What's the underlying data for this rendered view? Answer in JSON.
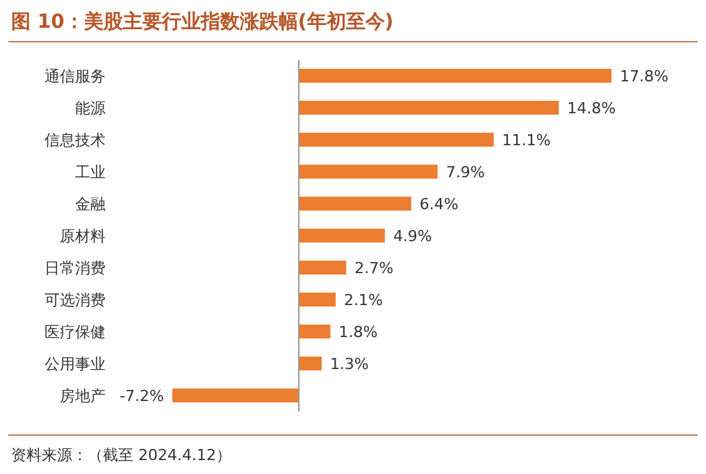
{
  "chart_data": {
    "type": "bar",
    "orientation": "horizontal",
    "title": "图 10：美股主要行业指数涨跌幅(年初至今)",
    "categories": [
      "通信服务",
      "能源",
      "信息技术",
      "工业",
      "金融",
      "原材料",
      "日常消费",
      "可选消费",
      "医疗保健",
      "公用事业",
      "房地产"
    ],
    "values": [
      17.8,
      14.8,
      11.1,
      7.9,
      6.4,
      4.9,
      2.7,
      2.1,
      1.8,
      1.3,
      -7.2
    ],
    "value_labels": [
      "17.8%",
      "14.8%",
      "11.1%",
      "7.9%",
      "6.4%",
      "4.9%",
      "2.7%",
      "2.1%",
      "1.8%",
      "1.3%",
      "-7.2%"
    ],
    "color": "#ed7d31",
    "annotations": [
      "资料来源：（截至 2024.4.12）"
    ]
  }
}
